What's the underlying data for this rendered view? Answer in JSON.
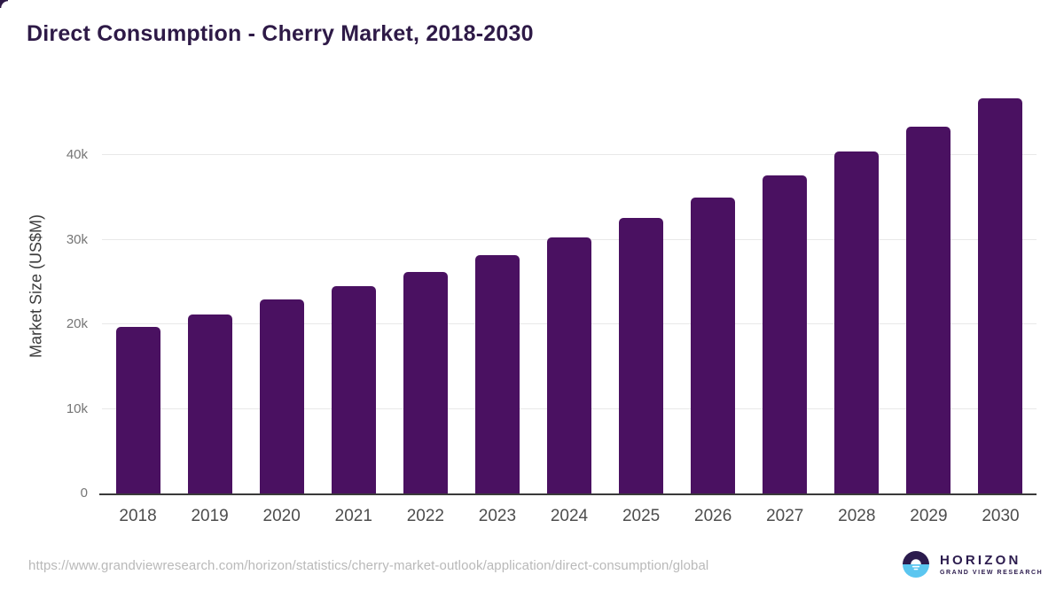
{
  "header": {
    "title": "Direct Consumption - Cherry Market, 2018-2030"
  },
  "chart_data": {
    "type": "bar",
    "title": "Direct Consumption - Cherry Market, 2018-2030",
    "categories": [
      "2018",
      "2019",
      "2020",
      "2021",
      "2022",
      "2023",
      "2024",
      "2025",
      "2026",
      "2027",
      "2028",
      "2029",
      "2030"
    ],
    "values": [
      19700,
      21200,
      22900,
      24500,
      26200,
      28200,
      30300,
      32600,
      35000,
      37600,
      40400,
      43400,
      46700
    ],
    "unit": "US$M",
    "xlabel": "",
    "ylabel": "Market Size (US$M)",
    "ylim": [
      0,
      48900
    ],
    "yticks": [
      {
        "value": 0,
        "label": "0"
      },
      {
        "value": 10000,
        "label": "10k"
      },
      {
        "value": 20000,
        "label": "20k"
      },
      {
        "value": 30000,
        "label": "30k"
      },
      {
        "value": 40000,
        "label": "40k"
      }
    ],
    "grid": "horizontal",
    "legend": "none",
    "bar_color": "#4a1161"
  },
  "footer": {
    "source_url": "https://www.grandviewresearch.com/horizon/statistics/cherry-market-outlook/application/direct-consumption/global",
    "logo": {
      "title": "HORIZON",
      "subtitle": "GRAND VIEW RESEARCH",
      "icon": "horizon-sunrise-icon",
      "purple": "#2b1b4d",
      "blue": "#5bc6f0"
    }
  },
  "colors": {
    "title_text": "#2e1a47",
    "bar": "#4a1161",
    "gridline": "#e8e8e8",
    "axis_line": "#3a3a3a",
    "y_tick_text": "#757575",
    "x_tick_text": "#4d4d4d",
    "url_text": "#b9b9b9",
    "background": "#ffffff"
  }
}
